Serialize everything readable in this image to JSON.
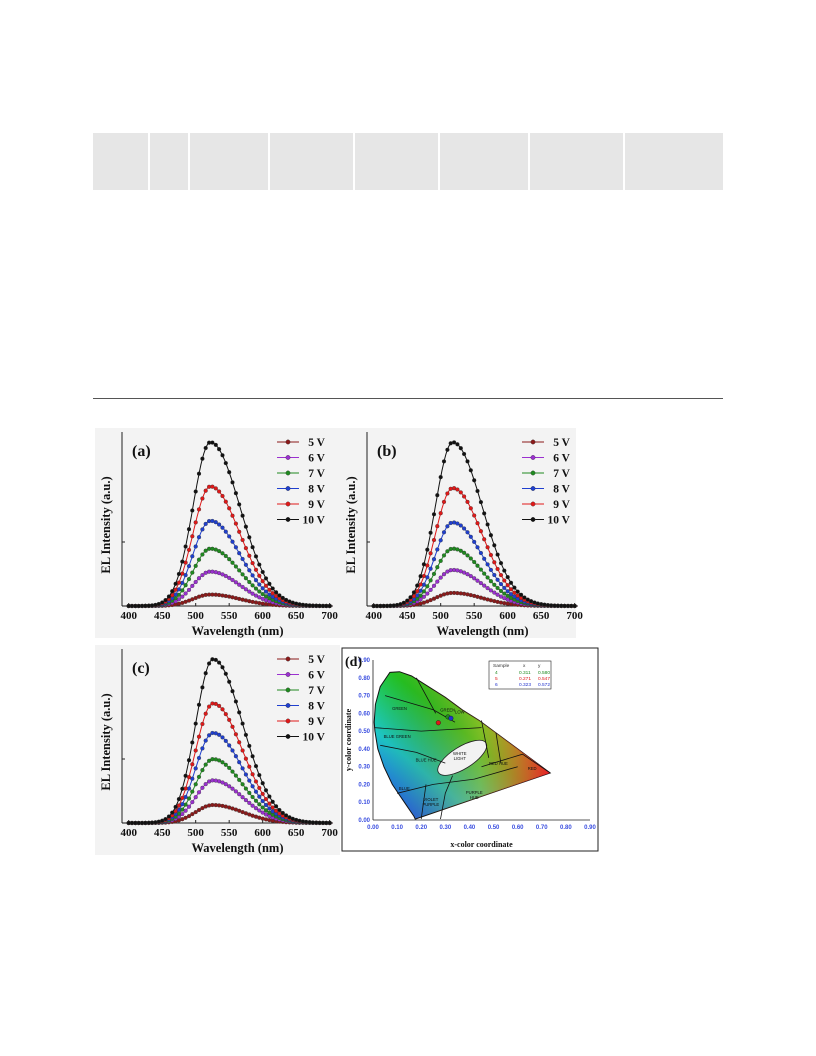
{
  "chart_data": [
    {
      "type": "line",
      "panel_label": "(a)",
      "xlabel": "Wavelength (nm)",
      "ylabel": "EL Intensity (a.u.)",
      "xlim": [
        390,
        705
      ],
      "ylim": [
        0,
        1.05
      ],
      "xticks": [
        "400",
        "450",
        "500",
        "550",
        "600",
        "650",
        "700"
      ],
      "peak_wavelength": 522,
      "legend_position": "top-right",
      "series": [
        {
          "name": "5 V",
          "color": "#8b1a1a",
          "peak": 0.07
        },
        {
          "name": "6 V",
          "color": "#9b30d0",
          "peak": 0.21
        },
        {
          "name": "7 V",
          "color": "#1f8a1f",
          "peak": 0.35
        },
        {
          "name": "8 V",
          "color": "#1f3fcf",
          "peak": 0.52
        },
        {
          "name": "9 V",
          "color": "#e01818",
          "peak": 0.73
        },
        {
          "name": "10 V",
          "color": "#111111",
          "peak": 1.0
        }
      ]
    },
    {
      "type": "line",
      "panel_label": "(b)",
      "xlabel": "Wavelength (nm)",
      "ylabel": "EL Intensity (a.u.)",
      "xlim": [
        390,
        705
      ],
      "ylim": [
        0,
        1.05
      ],
      "xticks": [
        "400",
        "450",
        "500",
        "550",
        "600",
        "650",
        "700"
      ],
      "peak_wavelength": 518,
      "legend_position": "top-right",
      "series": [
        {
          "name": "5 V",
          "color": "#8b1a1a",
          "peak": 0.08
        },
        {
          "name": "6 V",
          "color": "#9b30d0",
          "peak": 0.22
        },
        {
          "name": "7 V",
          "color": "#1f8a1f",
          "peak": 0.35
        },
        {
          "name": "8 V",
          "color": "#1f3fcf",
          "peak": 0.51
        },
        {
          "name": "9 V",
          "color": "#e01818",
          "peak": 0.72
        },
        {
          "name": "10 V",
          "color": "#111111",
          "peak": 1.0
        }
      ]
    },
    {
      "type": "line",
      "panel_label": "(c)",
      "xlabel": "Wavelength (nm)",
      "ylabel": "EL Intensity (a.u.)",
      "xlim": [
        390,
        705
      ],
      "ylim": [
        0,
        1.05
      ],
      "xticks": [
        "400",
        "450",
        "500",
        "550",
        "600",
        "650",
        "700"
      ],
      "peak_wavelength": 526,
      "legend_position": "top-right",
      "series": [
        {
          "name": "5 V",
          "color": "#8b1a1a",
          "peak": 0.11
        },
        {
          "name": "6 V",
          "color": "#9b30d0",
          "peak": 0.26
        },
        {
          "name": "7 V",
          "color": "#1f8a1f",
          "peak": 0.39
        },
        {
          "name": "8 V",
          "color": "#1f3fcf",
          "peak": 0.55
        },
        {
          "name": "9 V",
          "color": "#e01818",
          "peak": 0.73
        },
        {
          "name": "10 V",
          "color": "#111111",
          "peak": 1.0
        }
      ]
    },
    {
      "type": "scatter",
      "panel_label": "(d)",
      "xlabel": "x-color coordinate",
      "ylabel": "y-color coordinate",
      "xlim": [
        0,
        0.9
      ],
      "ylim": [
        0,
        0.9
      ],
      "xticks": [
        "0.00",
        "0.10",
        "0.20",
        "0.30",
        "0.40",
        "0.50",
        "0.60",
        "0.70",
        "0.80",
        "0.90"
      ],
      "yticks": [
        "0.00",
        "0.10",
        "0.20",
        "0.30",
        "0.40",
        "0.50",
        "0.60",
        "0.70",
        "0.80",
        "0.90"
      ],
      "region_labels": [
        "GREEN",
        "GREEN",
        "BLUE GREEN",
        "BLUE HUE",
        "WHITE LIGHT",
        "RED HUE",
        "RED",
        "BLUE",
        "VIOLET PURPLE",
        "PURPLE HUE",
        "LOW"
      ],
      "table": {
        "headers": [
          "Sample",
          "x",
          "y"
        ],
        "rows": [
          {
            "sample": "4",
            "x": "0.311",
            "y": "0.580",
            "color": "#1f8a1f"
          },
          {
            "sample": "5",
            "x": "0.271",
            "y": "0.547",
            "color": "#e01818"
          },
          {
            "sample": "6",
            "x": "0.323",
            "y": "0.572",
            "color": "#2233cc"
          }
        ]
      },
      "points": [
        {
          "sample": "4",
          "x": 0.311,
          "y": 0.58,
          "color": "#1f8a1f"
        },
        {
          "sample": "5",
          "x": 0.271,
          "y": 0.547,
          "color": "#e01818"
        },
        {
          "sample": "6",
          "x": 0.323,
          "y": 0.572,
          "color": "#2233cc"
        }
      ]
    }
  ]
}
